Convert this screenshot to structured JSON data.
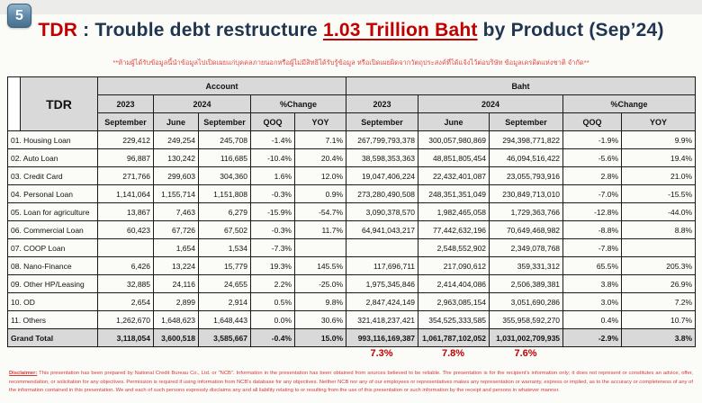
{
  "page_badge": "5",
  "title": {
    "tdr": "TDR",
    "separator": " : ",
    "lead": "Trouble debt restructure ",
    "highlight": "1.03 Trillion Baht",
    "tail": " by Product (Sep’24)"
  },
  "subtitle_thai": "**ห้ามผู้ได้รับข้อมูลนี้นำข้อมูลไปเปิดเผยแก่บุคคลภายนอกหรือผู้ไม่มีสิทธิได้รับรู้ข้อมูล หรือเปิดเผยผิดจากวัตถุประสงค์ที่ได้แจ้งไว้ต่อบริษัท ข้อมูลเครดิตแห่งชาติ จำกัด**",
  "table": {
    "corner_label": "TDR",
    "header": {
      "account": "Account",
      "baht": "Baht",
      "y2023": "2023",
      "y2024": "2024",
      "pct_change": "%Change",
      "september": "September",
      "june": "June",
      "qoq": "QOQ",
      "yoy": "YOY"
    },
    "rows": [
      {
        "label": "01. Housing Loan",
        "account": [
          "229,412",
          "249,254",
          "245,708",
          "-1.4%",
          "7.1%"
        ],
        "baht": [
          "267,799,793,378",
          "300,057,980,869",
          "294,398,771,822",
          "-1.9%",
          "9.9%"
        ]
      },
      {
        "label": "02. Auto Loan",
        "account": [
          "96,887",
          "130,242",
          "116,685",
          "-10.4%",
          "20.4%"
        ],
        "baht": [
          "38,598,353,363",
          "48,851,805,454",
          "46,094,516,422",
          "-5.6%",
          "19.4%"
        ]
      },
      {
        "label": "03. Credit Card",
        "account": [
          "271,766",
          "299,603",
          "304,360",
          "1.6%",
          "12.0%"
        ],
        "baht": [
          "19,047,406,224",
          "22,432,401,087",
          "23,055,793,916",
          "2.8%",
          "21.0%"
        ]
      },
      {
        "label": "04. Personal Loan",
        "account": [
          "1,141,064",
          "1,155,714",
          "1,151,808",
          "-0.3%",
          "0.9%"
        ],
        "baht": [
          "273,280,490,508",
          "248,351,351,049",
          "230,849,713,010",
          "-7.0%",
          "-15.5%"
        ]
      },
      {
        "label": "05. Loan for agriculture",
        "account": [
          "13,867",
          "7,463",
          "6,279",
          "-15.9%",
          "-54.7%"
        ],
        "baht": [
          "3,090,378,570",
          "1,982,465,058",
          "1,729,363,766",
          "-12.8%",
          "-44.0%"
        ]
      },
      {
        "label": "06. Commercial Loan",
        "account": [
          "60,423",
          "67,726",
          "67,502",
          "-0.3%",
          "11.7%"
        ],
        "baht": [
          "64,941,043,217",
          "77,442,632,196",
          "70,649,468,982",
          "-8.8%",
          "8.8%"
        ]
      },
      {
        "label": "07. COOP Loan",
        "account": [
          "",
          "1,654",
          "1,534",
          "-7.3%",
          ""
        ],
        "baht": [
          "",
          "2,548,552,902",
          "2,349,078,768",
          "-7.8%",
          ""
        ]
      },
      {
        "label": "08. Nano-Finance",
        "account": [
          "6,426",
          "13,224",
          "15,779",
          "19.3%",
          "145.5%"
        ],
        "baht": [
          "117,696,711",
          "217,090,612",
          "359,331,312",
          "65.5%",
          "205.3%"
        ]
      },
      {
        "label": "09. Other HP/Leasing",
        "account": [
          "32,885",
          "24,116",
          "24,655",
          "2.2%",
          "-25.0%"
        ],
        "baht": [
          "1,975,345,846",
          "2,414,404,086",
          "2,506,389,381",
          "3.8%",
          "26.9%"
        ]
      },
      {
        "label": "10. OD",
        "account": [
          "2,654",
          "2,899",
          "2,914",
          "0.5%",
          "9.8%"
        ],
        "baht": [
          "2,847,424,149",
          "2,963,085,154",
          "3,051,690,286",
          "3.0%",
          "7.2%"
        ]
      },
      {
        "label": "11. Others",
        "account": [
          "1,262,670",
          "1,648,623",
          "1,648,443",
          "0.0%",
          "30.6%"
        ],
        "baht": [
          "321,418,237,421",
          "354,525,333,585",
          "355,958,592,270",
          "0.4%",
          "10.7%"
        ]
      },
      {
        "label": "Grand Total",
        "total": true,
        "account": [
          "3,118,054",
          "3,600,518",
          "3,585,667",
          "-0.4%",
          "15.0%"
        ],
        "baht": [
          "993,116,169,387",
          "1,061,787,102,052",
          "1,031,002,709,935",
          "-2.9%",
          "3.8%"
        ]
      }
    ],
    "footer_pcts": [
      "7.3%",
      "7.8%",
      "7.6%"
    ]
  },
  "disclaimer": {
    "label": "Disclaimer:",
    "text": " This presentation has been prepared by National Credit Bureau Co., Ltd. or \"NCB\". Information in the presentation has been obtained from sources believed to be reliable. The presentation is for the recipient's information only; it does not represent or constitutes an advice, offer, recommendation, or solicitation for any objectives. Permission is required if using information from NCB's database for any objectives. Neither NCB nor any of our employees or representatives makes any representation or warranty, express or implied, as to the accuracy or completeness of any of the information contained in this presentation. We and each of such persons expressly disclaims any and all liability relating to or resulting from the use of this presentation or such information by the receipt and persons in whatever manner."
  },
  "colors": {
    "accent_red": "#c00000",
    "title_navy": "#1f3550",
    "header_gray": "#d9d9d9",
    "badge_blue": "#5d87a5"
  }
}
